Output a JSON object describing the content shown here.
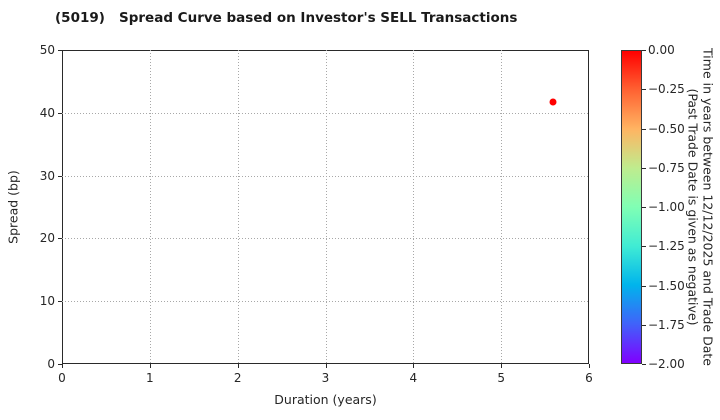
{
  "title": "(5019)   Spread Curve based on Investor's SELL Transactions",
  "chart_data": {
    "type": "scatter",
    "title": "(5019)   Spread Curve based on Investor's SELL Transactions",
    "xlabel": "Duration (years)",
    "ylabel": "Spread (bp)",
    "xlim": [
      0,
      6
    ],
    "ylim": [
      0,
      50
    ],
    "x_ticks": [
      0,
      1,
      2,
      3,
      4,
      5,
      6
    ],
    "y_ticks": [
      0,
      10,
      20,
      30,
      40,
      50
    ],
    "grid": "dotted",
    "legend_position": "none",
    "points": [
      {
        "x": 5.59,
        "y": 41.7,
        "color_value": 0.0,
        "color": "#ff0000"
      }
    ],
    "colorbar": {
      "colormap": "rainbow",
      "min": -2.0,
      "max": 0.0,
      "tick_labels": [
        "0.00",
        "−0.25",
        "−0.50",
        "−0.75",
        "−1.00",
        "−1.25",
        "−1.50",
        "−1.75",
        "−2.00"
      ],
      "label_line1": "Time in years between 12/12/2025 and Trade Date",
      "label_line2": "(Past Trade Date is given as negative)",
      "gradient_top_to_bottom": [
        "#ff0000",
        "#ff6232",
        "#ffb462",
        "#bfec8e",
        "#80ffb4",
        "#40ecd4",
        "#00b4ec",
        "#4062fa",
        "#8000ff"
      ]
    }
  }
}
